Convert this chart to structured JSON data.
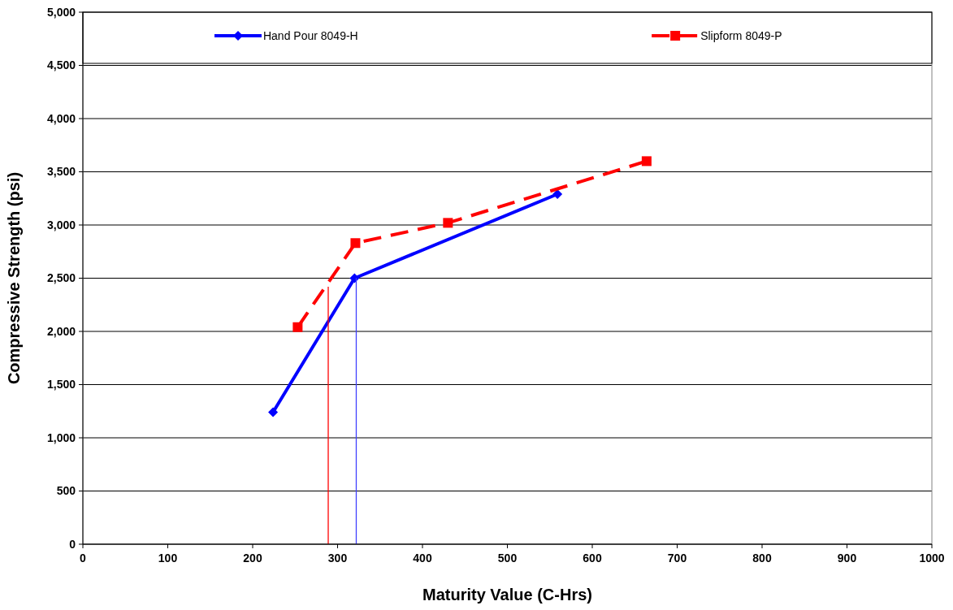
{
  "chart_data": {
    "type": "line",
    "xlabel": "Maturity Value (C-Hrs)",
    "ylabel": "Compressive Strength (psi)",
    "xlim": [
      0,
      1000
    ],
    "xticks": [
      0,
      100,
      200,
      300,
      400,
      500,
      600,
      700,
      800,
      900,
      1000
    ],
    "ylim": [
      0,
      5000
    ],
    "yticks": [
      {
        "value": 0,
        "label": "0"
      },
      {
        "value": 500,
        "label": "500"
      },
      {
        "value": 1000,
        "label": "1,000"
      },
      {
        "value": 1500,
        "label": "1,500"
      },
      {
        "value": 2000,
        "label": "2,000"
      },
      {
        "value": 2500,
        "label": "2,500"
      },
      {
        "value": 3000,
        "label": "3,000"
      },
      {
        "value": 3500,
        "label": "3,500"
      },
      {
        "value": 4000,
        "label": "4,000"
      },
      {
        "value": 4500,
        "label": "4,500"
      },
      {
        "value": 5000,
        "label": "5,000"
      }
    ],
    "grid": "y",
    "legend": "top",
    "series": [
      {
        "name": "Hand Pour 8049-H",
        "color": "#0000ff",
        "x": [
          224,
          320,
          559
        ],
        "values": [
          1240,
          2500,
          3290
        ],
        "marker": "diamond",
        "line_style": "solid"
      },
      {
        "name": "Slipform 8049-P",
        "color": "#ff0000",
        "x": [
          253,
          321,
          430,
          664
        ],
        "values": [
          2040,
          2830,
          3020,
          3600
        ],
        "marker": "square",
        "line_style": "dashed"
      },
      {
        "color": "#ff0000",
        "x": [
          289,
          289
        ],
        "values": [
          0,
          2420
        ],
        "marker": "none",
        "line_style": "solid"
      },
      {
        "color": "#4040ff",
        "x": [
          322,
          322
        ],
        "values": [
          0,
          2500
        ],
        "marker": "none",
        "line_style": "solid"
      }
    ]
  }
}
